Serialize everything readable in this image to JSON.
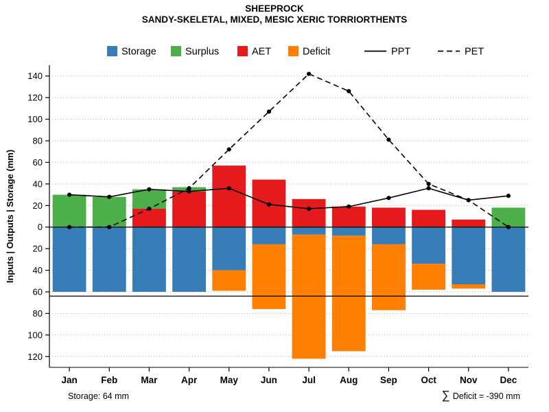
{
  "header": {
    "title": "SHEEPROCK",
    "subtitle": "SANDY-SKELETAL, MIXED, MESIC XERIC TORRIORTHENTS"
  },
  "footer": {
    "storage_note": "Storage: 64 mm",
    "deficit_sigma": "∑",
    "deficit_note": "Deficit = -390 mm"
  },
  "chart_data": {
    "type": "bar",
    "title": "SHEEPROCK",
    "subtitle": "SANDY-SKELETAL, MIXED, MESIC XERIC TORRIORTHENTS",
    "ylabel": "Inputs | Outputs | Storage  (mm)",
    "categories": [
      "Jan",
      "Feb",
      "Mar",
      "Apr",
      "May",
      "Jun",
      "Jul",
      "Aug",
      "Sep",
      "Oct",
      "Nov",
      "Dec"
    ],
    "ylim": [
      -130,
      150
    ],
    "ytick_interval": 20,
    "ytick_labels_absolute": true,
    "grid": "dotted-horizontal",
    "hlines": [
      0,
      -64
    ],
    "storage_capacity_mm": 64,
    "deficit_total_mm": -390,
    "legend_position": "top",
    "series": [
      {
        "name": "Storage",
        "kind": "bar",
        "direction": "down",
        "color": "#377EB8",
        "values": [
          60,
          60,
          60,
          60,
          40,
          16,
          7,
          8,
          16,
          34,
          53,
          60
        ]
      },
      {
        "name": "Deficit",
        "kind": "bar",
        "direction": "down",
        "color": "#FF7F00",
        "values": [
          0,
          0,
          0,
          0,
          19,
          60,
          115,
          107,
          61,
          24,
          4,
          0
        ]
      },
      {
        "name": "AET",
        "kind": "bar",
        "direction": "up",
        "color": "#E41A1C",
        "values": [
          0,
          0,
          17,
          33,
          57,
          44,
          26,
          19,
          18,
          16,
          7,
          0
        ]
      },
      {
        "name": "Surplus",
        "kind": "bar",
        "direction": "up",
        "color": "#4DAF4A",
        "values": [
          30,
          28,
          18,
          4,
          0,
          0,
          0,
          0,
          0,
          0,
          0,
          18
        ]
      },
      {
        "name": "PPT",
        "kind": "line",
        "dash": "solid",
        "color": "#000000",
        "values": [
          30,
          28,
          35,
          33,
          36,
          21,
          17,
          19,
          27,
          36,
          25,
          29
        ]
      },
      {
        "name": "PET",
        "kind": "line",
        "dash": "dashed",
        "color": "#000000",
        "values": [
          0,
          0,
          17,
          36,
          72,
          107,
          142,
          126,
          81,
          40,
          25,
          0
        ]
      }
    ],
    "legend": [
      {
        "label": "Storage",
        "swatch": "square",
        "color": "#377EB8"
      },
      {
        "label": "Surplus",
        "swatch": "square",
        "color": "#4DAF4A"
      },
      {
        "label": "AET",
        "swatch": "square",
        "color": "#E41A1C"
      },
      {
        "label": "Deficit",
        "swatch": "square",
        "color": "#FF7F00"
      },
      {
        "label": "PPT",
        "swatch": "line-solid",
        "color": "#000000"
      },
      {
        "label": "PET",
        "swatch": "line-dashed",
        "color": "#000000"
      }
    ]
  }
}
